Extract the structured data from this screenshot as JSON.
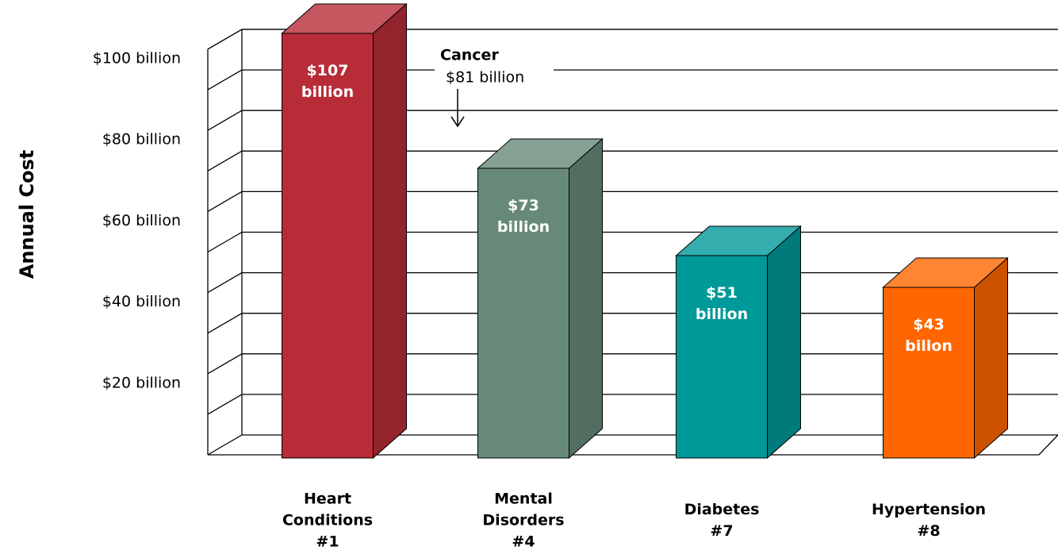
{
  "chart_data": {
    "type": "bar3d",
    "y_label": "Annual Cost",
    "categories": [
      "Heart Conditions",
      "Mental Disorders",
      "Diabetes",
      "Hypertension"
    ],
    "ranks": [
      "#1",
      "#4",
      "#7",
      "#8"
    ],
    "values": [
      107,
      73,
      51,
      43
    ],
    "value_labels": [
      "$107 billion",
      "$73 billion",
      "$51 billion",
      "$43 billon"
    ],
    "colors": [
      "#b82c38",
      "#678a78",
      "#009999",
      "#ff6600"
    ],
    "ylim": [
      0,
      100
    ],
    "yticks": [
      {
        "value": 20,
        "label": "$20 billion"
      },
      {
        "value": 40,
        "label": "$40 billion"
      },
      {
        "value": 60,
        "label": "$60 billion"
      },
      {
        "value": 80,
        "label": "$80 billion"
      },
      {
        "value": 100,
        "label": "$100 billion"
      }
    ],
    "minor_yticks": [
      10,
      30,
      50,
      70,
      90
    ],
    "grid": true,
    "annotation": {
      "label": "Cancer",
      "value": 81,
      "value_label": "$81 billion"
    }
  }
}
